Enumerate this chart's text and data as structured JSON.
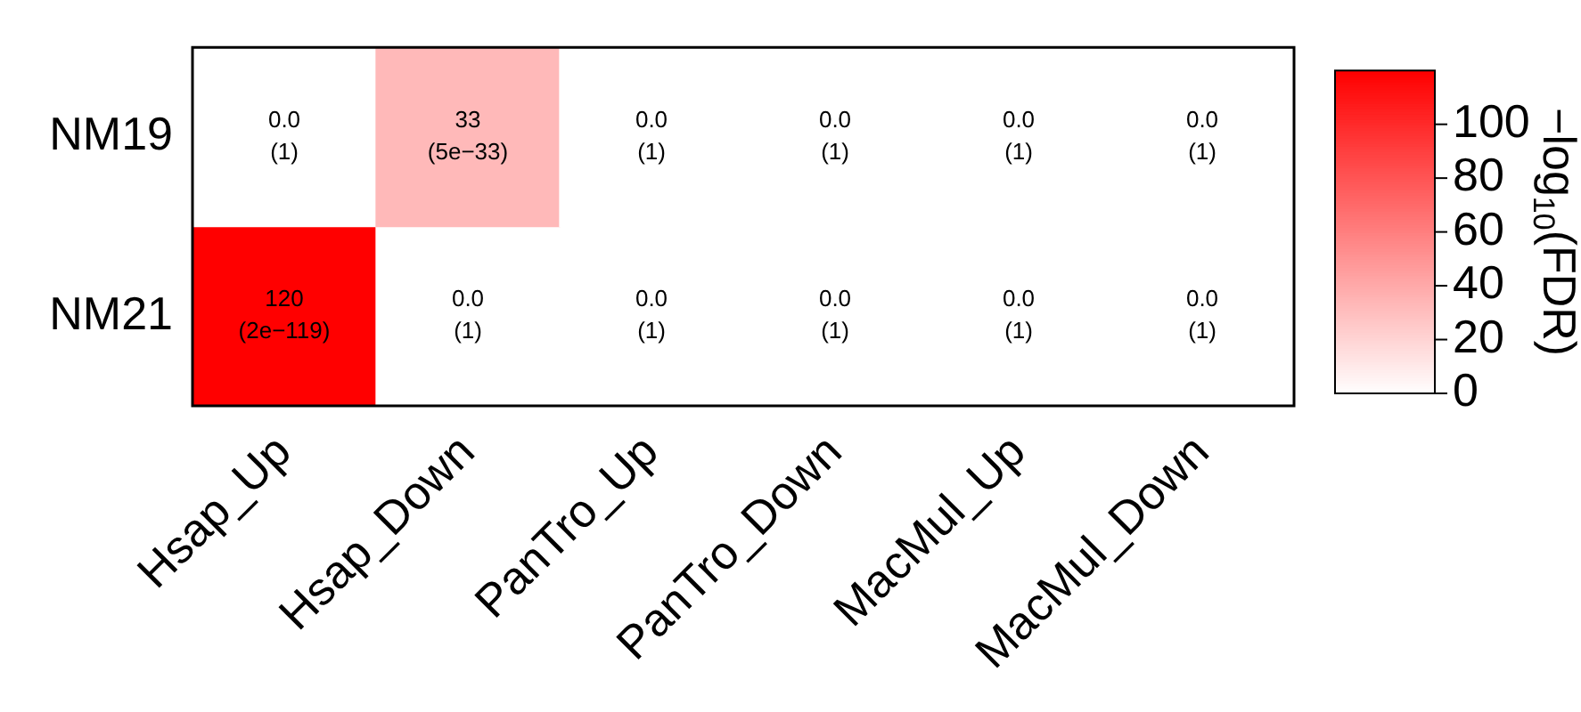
{
  "chart_data": {
    "type": "heatmap",
    "categories": [
      "Hsap_Up",
      "Hsap_Down",
      "PanTro_Up",
      "PanTro_Down",
      "MacMul_Up",
      "MacMul_Down"
    ],
    "y_categories": [
      "NM19",
      "NM21"
    ],
    "cells": [
      [
        0,
        33,
        0,
        0,
        0,
        0
      ],
      [
        120,
        0,
        0,
        0,
        0,
        0
      ]
    ],
    "cell_labels": [
      [
        "0.0\n(1)",
        "33\n(5e−33)",
        "0.0\n(1)",
        "0.0\n(1)",
        "0.0\n(1)",
        "0.0\n(1)"
      ],
      [
        "120\n(2e−119)",
        "0.0\n(1)",
        "0.0\n(1)",
        "0.0\n(1)",
        "0.0\n(1)",
        "0.0\n(1)"
      ]
    ],
    "clim": [
      0,
      120
    ],
    "cticks": [
      0,
      20,
      40,
      60,
      80,
      100
    ],
    "clabel": "−log$_{10}$(FDR)"
  }
}
